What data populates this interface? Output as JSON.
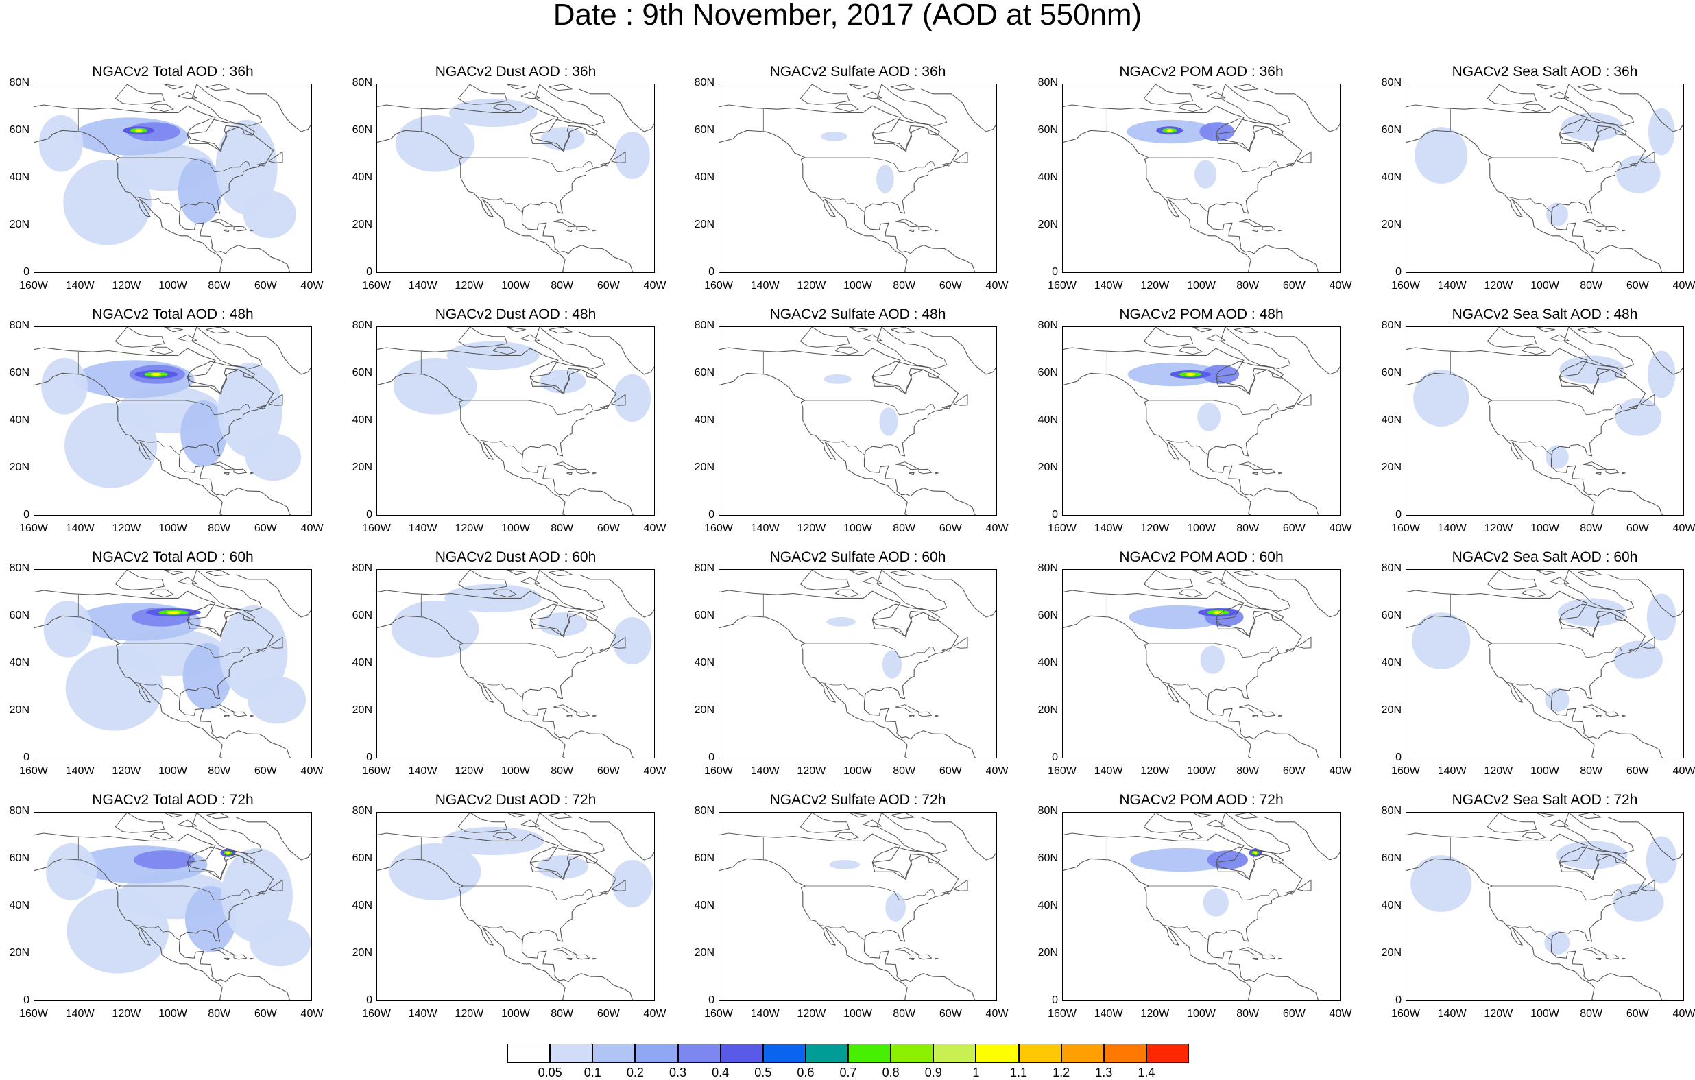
{
  "title": "Date : 9th November, 2017 (AOD at 550nm)",
  "rows": [
    [
      "NGACv2 Total AOD : 36h",
      "NGACv2 Dust AOD : 36h",
      "NGACv2 Sulfate AOD : 36h",
      "NGACv2 POM AOD : 36h",
      "NGACv2 Sea Salt AOD : 36h"
    ],
    [
      "NGACv2 Total AOD : 48h",
      "NGACv2 Dust AOD : 48h",
      "NGACv2 Sulfate AOD : 48h",
      "NGACv2 POM AOD : 48h",
      "NGACv2 Sea Salt AOD : 48h"
    ],
    [
      "NGACv2 Total AOD : 60h",
      "NGACv2 Dust AOD : 60h",
      "NGACv2 Sulfate AOD : 60h",
      "NGACv2 POM AOD : 60h",
      "NGACv2 Sea Salt AOD : 60h"
    ],
    [
      "NGACv2 Total AOD : 72h",
      "NGACv2 Dust AOD : 72h",
      "NGACv2 Sulfate AOD : 72h",
      "NGACv2 POM AOD : 72h",
      "NGACv2 Sea Salt  AOD : 72h"
    ]
  ],
  "lat_labels": [
    "80N",
    "60N",
    "40N",
    "20N",
    "0"
  ],
  "lon_labels": [
    "160W",
    "140W",
    "120W",
    "100W",
    "80W",
    "60W",
    "40W"
  ],
  "colorbar": {
    "labels": [
      "0.05",
      "0.1",
      "0.2",
      "0.3",
      "0.4",
      "0.5",
      "0.6",
      "0.7",
      "0.8",
      "0.9",
      "1",
      "1.1",
      "1.2",
      "1.3",
      "1.4"
    ],
    "colors": [
      "#ffffff",
      "#d0dcf8",
      "#b0c4f6",
      "#90a8f4",
      "#7c88f0",
      "#5a5ae8",
      "#0a64f0",
      "#009c96",
      "#46f000",
      "#8cf000",
      "#c8f050",
      "#ffff00",
      "#ffc800",
      "#ffa000",
      "#ff7800",
      "#ff2800"
    ]
  },
  "colors": {
    "map_outline": "#555555",
    "aod_low": "#d0dcf8",
    "aod_mid": "#b0c4f6",
    "aod_high": "#7c88f0"
  }
}
